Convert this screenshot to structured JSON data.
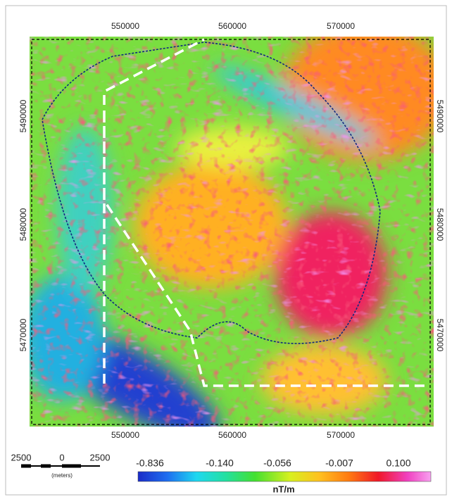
{
  "map": {
    "x_ticks_top": [
      "550000",
      "560000",
      "570000"
    ],
    "x_ticks_bottom": [
      "550000",
      "560000",
      "570000"
    ],
    "y_ticks_left": [
      "5490000",
      "5480000",
      "5470000"
    ],
    "y_ticks_right": [
      "5490000",
      "5480000",
      "5470000"
    ],
    "scale_bar": {
      "labels": [
        "2500",
        "0",
        "2500"
      ],
      "unit": "(meters)"
    },
    "colorbar": {
      "labels": [
        "-0.836",
        "-0.140",
        "-0.056",
        "-0.007",
        "0.100"
      ],
      "unit": "nT/m"
    }
  }
}
